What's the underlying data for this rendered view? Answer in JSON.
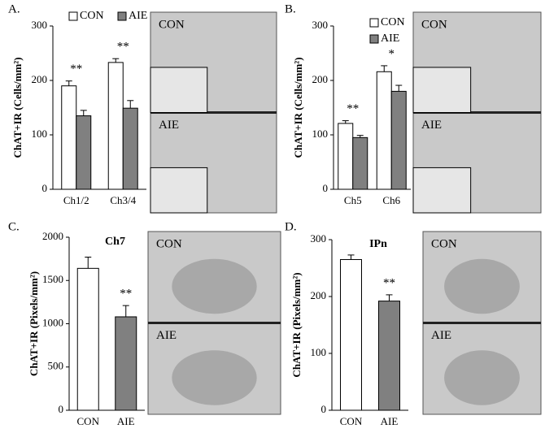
{
  "chart_data": [
    {
      "type": "bar",
      "panel": "A.",
      "ylabel": "ChAT+IR (Cells/mm²)",
      "categories": [
        "Ch1/2",
        "Ch3/4"
      ],
      "series": [
        {
          "name": "CON",
          "color": "#ffffff",
          "values": [
            190,
            233
          ],
          "errors": [
            9,
            7
          ]
        },
        {
          "name": "AIE",
          "color": "#808080",
          "values": [
            135,
            149
          ],
          "errors": [
            10,
            14
          ]
        }
      ],
      "annotations": [
        "**",
        "**"
      ],
      "ylim": [
        0,
        300
      ],
      "yticks": [
        0,
        100,
        200,
        300
      ],
      "legend": "top",
      "image_labels": [
        "CON",
        "AIE"
      ]
    },
    {
      "type": "bar",
      "panel": "B.",
      "ylabel": "ChAT+IR (Cells/mm²)",
      "categories": [
        "Ch5",
        "Ch6"
      ],
      "series": [
        {
          "name": "CON",
          "color": "#ffffff",
          "values": [
            121,
            216
          ],
          "errors": [
            5,
            11
          ]
        },
        {
          "name": "AIE",
          "color": "#808080",
          "values": [
            95,
            180
          ],
          "errors": [
            4,
            11
          ]
        }
      ],
      "annotations": [
        "**",
        "*"
      ],
      "ylim": [
        0,
        300
      ],
      "yticks": [
        0,
        100,
        200,
        300
      ],
      "legend": "upper right",
      "image_labels": [
        "CON",
        "AIE"
      ]
    },
    {
      "type": "bar",
      "panel": "C.",
      "title": "Ch7",
      "ylabel": "ChAT+IR (Pixels/mm²)",
      "categories": [
        "CON",
        "AIE"
      ],
      "values": [
        1640,
        1080
      ],
      "errors": [
        130,
        130
      ],
      "colors": [
        "#ffffff",
        "#808080"
      ],
      "annotations": [
        null,
        "**"
      ],
      "ylim": [
        0,
        2000
      ],
      "yticks": [
        0,
        500,
        1000,
        1500,
        2000
      ],
      "image_labels": [
        "CON",
        "AIE"
      ]
    },
    {
      "type": "bar",
      "panel": "D.",
      "title": "IPn",
      "ylabel": "ChAT+IR (Pixels/mm²)",
      "categories": [
        "CON",
        "AIE"
      ],
      "values": [
        265,
        192
      ],
      "errors": [
        8,
        11
      ],
      "colors": [
        "#ffffff",
        "#808080"
      ],
      "annotations": [
        null,
        "**"
      ],
      "ylim": [
        0,
        300
      ],
      "yticks": [
        0,
        100,
        200,
        300
      ],
      "image_labels": [
        "CON",
        "AIE"
      ]
    }
  ]
}
